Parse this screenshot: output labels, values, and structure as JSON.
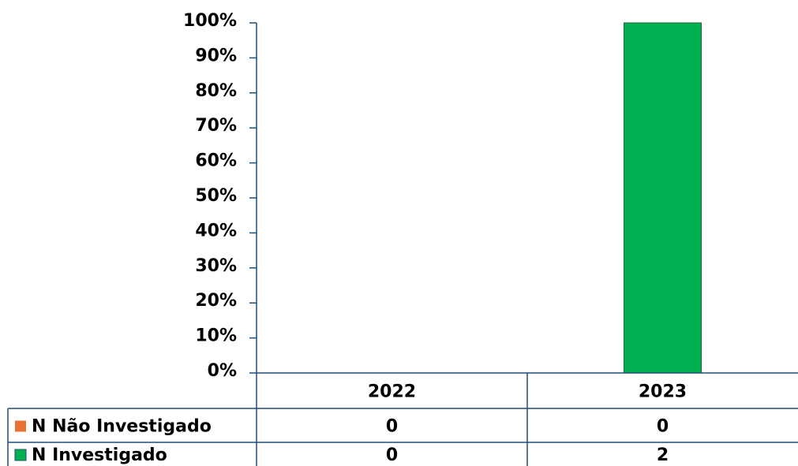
{
  "chart_data": {
    "type": "bar",
    "stacking": "percent",
    "categories": [
      "2022",
      "2023"
    ],
    "series": [
      {
        "name": "N Não Investigado",
        "color": "#e97132",
        "values": [
          0,
          0
        ]
      },
      {
        "name": "N Investigado",
        "color": "#00b050",
        "values": [
          0,
          2
        ]
      }
    ],
    "ylim": [
      0,
      100
    ],
    "yticks": [
      {
        "value": 0,
        "label": "0%"
      },
      {
        "value": 10,
        "label": "10%"
      },
      {
        "value": 20,
        "label": "20%"
      },
      {
        "value": 30,
        "label": "30%"
      },
      {
        "value": 40,
        "label": "40%"
      },
      {
        "value": 50,
        "label": "50%"
      },
      {
        "value": 60,
        "label": "60%"
      },
      {
        "value": 70,
        "label": "70%"
      },
      {
        "value": 80,
        "label": "80%"
      },
      {
        "value": 90,
        "label": "90%"
      },
      {
        "value": 100,
        "label": "100%"
      }
    ],
    "data_table": true
  }
}
